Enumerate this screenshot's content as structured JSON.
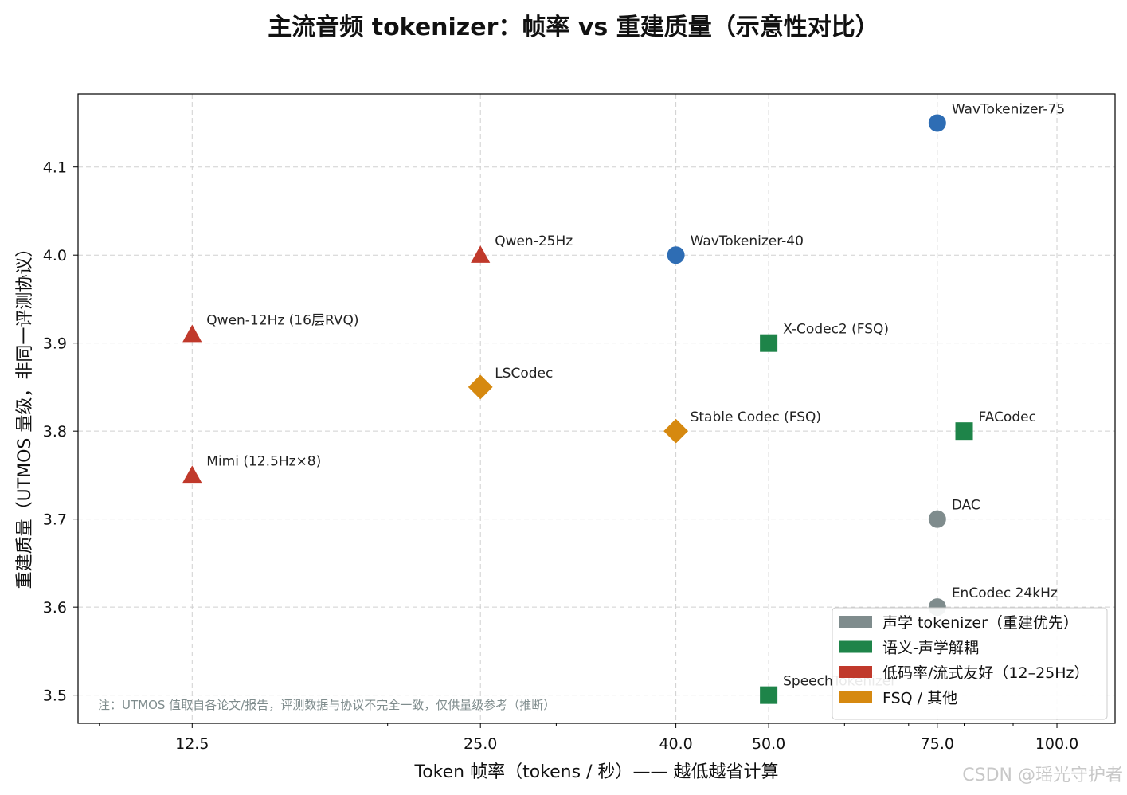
{
  "chart_data": {
    "type": "scatter",
    "title": "主流音频 tokenizer：帧率 vs 重建质量（示意性对比）",
    "xlabel": "Token 帧率（tokens / 秒）—— 越低越省计算",
    "ylabel": "重建质量（UTMOS 量级，非同一评测协议）",
    "xscale": "log",
    "xlim": [
      9.5,
      115
    ],
    "ylim": [
      3.468,
      4.183
    ],
    "xticks": [
      12.5,
      25.0,
      40.0,
      50.0,
      75.0,
      100.0
    ],
    "xtick_labels": [
      "12.5",
      "25.0",
      "40.0",
      "50.0",
      "75.0",
      "100.0"
    ],
    "yticks": [
      3.5,
      3.6,
      3.7,
      3.8,
      3.9,
      4.0,
      4.1
    ],
    "ytick_labels": [
      "3.5",
      "3.6",
      "3.7",
      "3.8",
      "3.9",
      "4.0",
      "4.1"
    ],
    "grid": true,
    "legend_position": "lower-right",
    "series": [
      {
        "name": "声学 tokenizer（重建优先）",
        "color": "#7f8c8d",
        "marker": "circle",
        "points": [
          {
            "label": "DAC",
            "x": 75,
            "y": 3.7
          },
          {
            "label": "EnCodec 24kHz",
            "x": 75,
            "y": 3.6
          }
        ]
      },
      {
        "name": "语义-声学解耦",
        "color": "#1e8449",
        "marker": "square",
        "points": [
          {
            "label": "X-Codec2 (FSQ)",
            "x": 50,
            "y": 3.9
          },
          {
            "label": "FACodec",
            "x": 80,
            "y": 3.8
          },
          {
            "label": "SpeechTokenizer",
            "x": 50,
            "y": 3.5
          }
        ]
      },
      {
        "name": "低码率/流式友好（12–25Hz）",
        "color": "#c0392b",
        "marker": "triangle",
        "points": [
          {
            "label": "Qwen-25Hz",
            "x": 25,
            "y": 4.0
          },
          {
            "label": "Qwen-12Hz (16层RVQ)",
            "x": 12.5,
            "y": 3.91
          },
          {
            "label": "Mimi (12.5Hz×8)",
            "x": 12.5,
            "y": 3.75
          }
        ]
      },
      {
        "name": "FSQ / 其他",
        "color": "#d68910",
        "marker": "diamond",
        "points": [
          {
            "label": "LSCodec",
            "x": 25,
            "y": 3.85
          },
          {
            "label": "Stable Codec (FSQ)",
            "x": 40,
            "y": 3.8
          }
        ]
      },
      {
        "name": "",
        "color": "#2e6db4",
        "marker": "circle",
        "points": [
          {
            "label": "WavTokenizer-75",
            "x": 75,
            "y": 4.15
          },
          {
            "label": "WavTokenizer-40",
            "x": 40,
            "y": 4.0
          }
        ]
      }
    ],
    "annotation": "注：UTMOS 值取自各论文/报告，评测数据与协议不完全一致，仅供量级参考（推断）"
  },
  "watermark": "CSDN @瑶光守护者"
}
